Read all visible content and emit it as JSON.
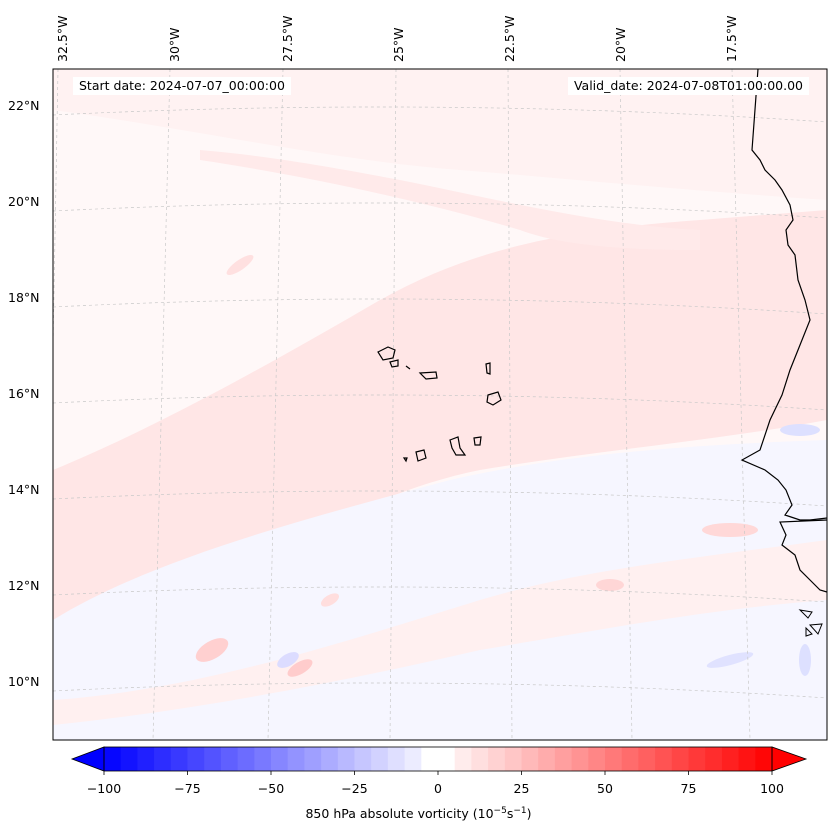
{
  "map": {
    "start_label": "Start date: 2024-07-07_00:00:00",
    "valid_label": "Valid_date: 2024-07-08T01:00:00.00",
    "lon_ticks": [
      "32.5°W",
      "30°W",
      "27.5°W",
      "25°W",
      "22.5°W",
      "20°W",
      "17.5°W"
    ],
    "lat_ticks": [
      "22°N",
      "20°N",
      "18°N",
      "16°N",
      "14°N",
      "12°N",
      "10°N"
    ],
    "region": "Cape Verde Islands and West African coast",
    "colors": {
      "positive": "#ff0000",
      "negative": "#0000ff",
      "coast": "#000000"
    }
  },
  "colorbar": {
    "ticks": [
      "−100",
      "−75",
      "−50",
      "−25",
      "0",
      "25",
      "50",
      "75",
      "100"
    ],
    "min": -100,
    "max": 100,
    "label": "850 hPa absolute vorticity (10",
    "label_exp1": "−5",
    "label_mid": "s",
    "label_exp2": "−1",
    "label_end": ")"
  }
}
